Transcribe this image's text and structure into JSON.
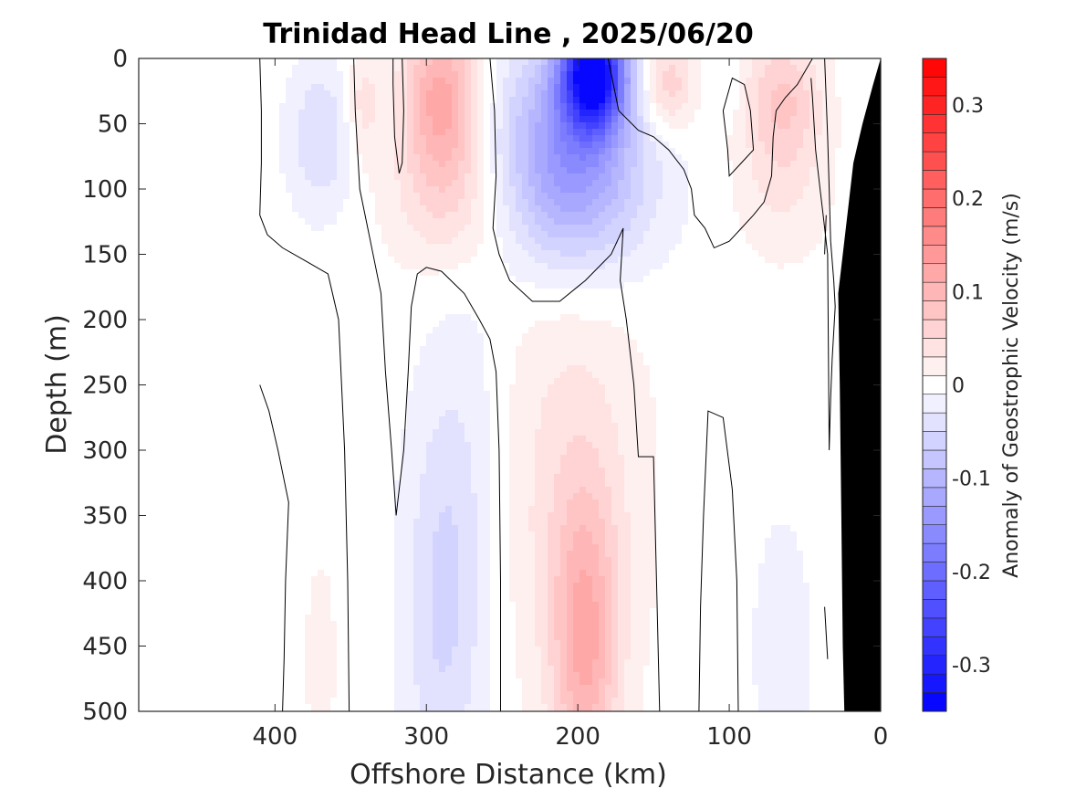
{
  "chart_data": {
    "type": "heatmap",
    "title": "Trinidad Head Line , 2025/06/20",
    "xlabel": "Offshore Distance (km)",
    "ylabel": "Depth (m)",
    "xlim": [
      490,
      0
    ],
    "ylim": [
      0,
      500
    ],
    "x_reversed": true,
    "y_reversed": true,
    "xticks": [
      400,
      300,
      200,
      100,
      0
    ],
    "xtick_labels": [
      "400",
      "300",
      "200",
      "100",
      "0"
    ],
    "yticks": [
      0,
      50,
      100,
      150,
      200,
      250,
      300,
      350,
      400,
      450,
      500
    ],
    "ytick_labels": [
      "0",
      "50",
      "100",
      "150",
      "200",
      "250",
      "300",
      "350",
      "400",
      "450",
      "500"
    ],
    "colorbar": {
      "label": "Anomaly of Geostrophic Velocity (m/s)",
      "range": [
        -0.35,
        0.35
      ],
      "step": 0.02,
      "ticks": [
        -0.3,
        -0.2,
        -0.1,
        0,
        0.1,
        0.2,
        0.3
      ],
      "tick_labels": [
        "-0.3",
        "-0.2",
        "-0.1",
        "0",
        "0.1",
        "0.2",
        "0.3"
      ],
      "negative_color": "#0000ff",
      "positive_color": "#ff0000",
      "zero_color": "#ffffff"
    },
    "anomaly_cores": [
      {
        "x": 190,
        "depth": 10,
        "value": -0.34,
        "sx": 14,
        "sy": 30
      },
      {
        "x": 205,
        "depth": 60,
        "value": -0.12,
        "sx": 32,
        "sy": 55
      },
      {
        "x": 205,
        "depth": 110,
        "value": -0.05,
        "sx": 40,
        "sy": 45
      },
      {
        "x": 290,
        "depth": 30,
        "value": 0.12,
        "sx": 18,
        "sy": 45
      },
      {
        "x": 280,
        "depth": 110,
        "value": 0.05,
        "sx": 30,
        "sy": 40
      },
      {
        "x": 342,
        "depth": 35,
        "value": 0.04,
        "sx": 8,
        "sy": 30
      },
      {
        "x": 370,
        "depth": 60,
        "value": -0.05,
        "sx": 15,
        "sy": 40
      },
      {
        "x": 140,
        "depth": 20,
        "value": 0.07,
        "sx": 12,
        "sy": 25
      },
      {
        "x": 65,
        "depth": 30,
        "value": 0.07,
        "sx": 18,
        "sy": 35
      },
      {
        "x": 65,
        "depth": 100,
        "value": 0.03,
        "sx": 22,
        "sy": 40
      },
      {
        "x": 100,
        "depth": 25,
        "value": -0.02,
        "sx": 6,
        "sy": 15
      },
      {
        "x": 290,
        "depth": 420,
        "value": -0.05,
        "sx": 18,
        "sy": 110
      },
      {
        "x": 270,
        "depth": 320,
        "value": -0.02,
        "sx": 20,
        "sy": 120
      },
      {
        "x": 195,
        "depth": 450,
        "value": 0.1,
        "sx": 15,
        "sy": 80
      },
      {
        "x": 205,
        "depth": 330,
        "value": 0.04,
        "sx": 35,
        "sy": 120
      },
      {
        "x": 370,
        "depth": 460,
        "value": 0.02,
        "sx": 8,
        "sy": 60
      },
      {
        "x": 65,
        "depth": 450,
        "value": -0.02,
        "sx": 16,
        "sy": 80
      }
    ],
    "zero_contours": [
      [
        [
          395,
          500
        ],
        [
          394,
          460
        ],
        [
          393,
          400
        ],
        [
          391,
          340
        ],
        [
          398,
          300
        ],
        [
          404,
          270
        ],
        [
          410,
          250
        ]
      ],
      [
        [
          351,
          500
        ],
        [
          352,
          400
        ],
        [
          354,
          300
        ],
        [
          356,
          250
        ],
        [
          358,
          200
        ],
        [
          365,
          165
        ],
        [
          380,
          155
        ],
        [
          395,
          145
        ],
        [
          405,
          135
        ],
        [
          410,
          120
        ],
        [
          409,
          80
        ],
        [
          409,
          40
        ],
        [
          410,
          0
        ]
      ],
      [
        [
          316,
          0
        ],
        [
          315,
          40
        ],
        [
          316,
          80
        ],
        [
          318,
          88
        ],
        [
          321,
          60
        ],
        [
          322,
          20
        ],
        [
          322,
          0
        ]
      ],
      [
        [
          348,
          0
        ],
        [
          347,
          40
        ],
        [
          344,
          100
        ],
        [
          337,
          140
        ],
        [
          330,
          180
        ],
        [
          327,
          240
        ],
        [
          323,
          300
        ],
        [
          320,
          350
        ],
        [
          315,
          300
        ],
        [
          312,
          240
        ],
        [
          310,
          190
        ],
        [
          306,
          165
        ],
        [
          300,
          160
        ],
        [
          290,
          163
        ],
        [
          275,
          180
        ],
        [
          265,
          200
        ],
        [
          258,
          215
        ],
        [
          254,
          240
        ],
        [
          252,
          300
        ],
        [
          251,
          400
        ],
        [
          251,
          500
        ]
      ],
      [
        [
          258,
          0
        ],
        [
          255,
          40
        ],
        [
          254,
          90
        ],
        [
          256,
          130
        ],
        [
          252,
          150
        ],
        [
          245,
          170
        ],
        [
          230,
          186
        ],
        [
          212,
          186
        ],
        [
          195,
          170
        ],
        [
          178,
          150
        ],
        [
          170,
          130
        ],
        [
          172,
          170
        ],
        [
          168,
          200
        ],
        [
          163,
          250
        ],
        [
          160,
          305
        ],
        [
          150,
          305
        ],
        [
          148,
          400
        ],
        [
          146,
          500
        ]
      ],
      [
        [
          180,
          0
        ],
        [
          173,
          40
        ],
        [
          160,
          55
        ],
        [
          150,
          60
        ],
        [
          140,
          70
        ],
        [
          130,
          85
        ],
        [
          125,
          100
        ],
        [
          123,
          120
        ],
        [
          116,
          130
        ],
        [
          110,
          145
        ],
        [
          100,
          140
        ],
        [
          92,
          130
        ],
        [
          84,
          120
        ],
        [
          77,
          110
        ],
        [
          72,
          90
        ],
        [
          71,
          60
        ],
        [
          69,
          40
        ],
        [
          63,
          30
        ],
        [
          55,
          20
        ],
        [
          45,
          0
        ]
      ],
      [
        [
          120,
          500
        ],
        [
          119,
          420
        ],
        [
          117,
          350
        ],
        [
          114,
          270
        ],
        [
          104,
          275
        ],
        [
          98,
          330
        ],
        [
          95,
          400
        ],
        [
          94,
          500
        ]
      ],
      [
        [
          104,
          40
        ],
        [
          101,
          70
        ],
        [
          100,
          90
        ],
        [
          92,
          80
        ],
        [
          84,
          70
        ],
        [
          86,
          40
        ],
        [
          90,
          20
        ],
        [
          98,
          15
        ],
        [
          104,
          40
        ]
      ],
      [
        [
          37,
          0
        ],
        [
          35,
          60
        ],
        [
          34,
          100
        ],
        [
          33,
          140
        ],
        [
          31,
          170
        ],
        [
          30,
          190
        ],
        [
          32,
          230
        ],
        [
          33,
          260
        ],
        [
          34,
          300
        ],
        [
          35,
          150
        ],
        [
          38,
          120
        ],
        [
          40,
          100
        ],
        [
          43,
          70
        ],
        [
          45,
          30
        ],
        [
          46,
          15
        ]
      ],
      [
        [
          37,
          420
        ],
        [
          35,
          460
        ]
      ],
      [
        [
          37,
          150
        ],
        [
          36,
          120
        ]
      ]
    ],
    "land_color": "#000000",
    "land_boundary": [
      [
        0,
        0
      ],
      [
        0,
        500
      ],
      [
        24,
        500
      ],
      [
        25,
        450
      ],
      [
        26,
        350
      ],
      [
        27,
        250
      ],
      [
        28,
        180
      ],
      [
        22,
        120
      ],
      [
        18,
        80
      ],
      [
        12,
        50
      ],
      [
        5,
        20
      ],
      [
        0,
        0
      ]
    ]
  }
}
